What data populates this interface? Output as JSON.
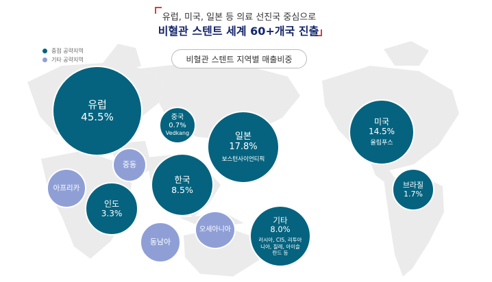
{
  "header": {
    "subtitle": "유럽, 미국, 일본 등 의료 선진국 중심으로",
    "headline": "비혈관 스텐트 세계 60+개국 진출"
  },
  "title_pill": "비혈관 스텐트 지역별 매출비중",
  "legend": {
    "items": [
      {
        "label": "중점 공략지역",
        "color": "#05637f"
      },
      {
        "label": "기타 공략지역",
        "color": "#8f9fd6"
      }
    ]
  },
  "regions": {
    "europe": {
      "name": "유럽",
      "pct": "45.5%"
    },
    "china": {
      "name": "중국",
      "pct": "0.7%",
      "note": "Vedkang"
    },
    "japan": {
      "name": "일본",
      "pct": "17.8%",
      "note": "보스턴사이언티픽"
    },
    "usa": {
      "name": "미국",
      "pct": "14.5%",
      "note": "올림푸스"
    },
    "middle_east": {
      "name": "중동"
    },
    "africa": {
      "name": "아프리카"
    },
    "korea": {
      "name": "한국",
      "pct": "8.5%"
    },
    "india": {
      "name": "인도",
      "pct": "3.3%"
    },
    "oceania": {
      "name": "오세아니아"
    },
    "southeast_asia": {
      "name": "동남아"
    },
    "others": {
      "name": "기타",
      "pct": "8.0%",
      "note": "러시아, CIS, 리투아니아, 칠레, 아이슬란드 등"
    },
    "brazil": {
      "name": "브라질",
      "pct": "1.7%"
    }
  },
  "colors": {
    "key_region": "#05637f",
    "other_region": "#8f9fd6",
    "map": "#ebebeb",
    "headline": "#14246b",
    "bracket": "#e03a3a"
  }
}
